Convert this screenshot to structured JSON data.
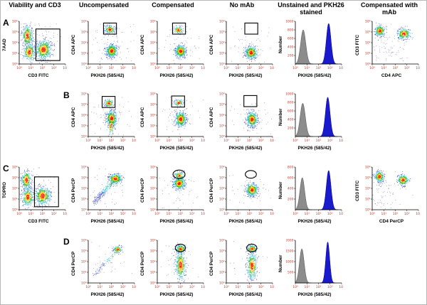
{
  "figure": {
    "column_headers": [
      "Viability and CD3",
      "Uncompensated",
      "Compensated",
      "No mAb",
      "Unstained and PKH26 stained",
      "Compensated with mAb"
    ],
    "row_labels": [
      "A",
      "B",
      "C",
      "D"
    ]
  },
  "axis": {
    "log_ticks": [
      "10⁰",
      "10¹",
      "10²",
      "10³",
      "10⁴"
    ],
    "tick_color": "#c0392b"
  },
  "colors": {
    "density_scale": [
      "#2332c8",
      "#14b4d2",
      "#28b428",
      "#ffc800",
      "#ff1400"
    ],
    "background_dots": "#2a2a6e",
    "histogram_unstained_fill": "#8c8c8c",
    "histogram_stained_fill": "#1a1acd",
    "gate": "#000000"
  },
  "chart_data": [
    {
      "id": "A1",
      "row": "A",
      "col": 1,
      "type": "density",
      "xlabel": "CD3 FITC",
      "ylabel": "7AAD",
      "scatter": [
        {
          "x": 0.32,
          "y": 0.55,
          "sx": 0.26,
          "sy": 0.28,
          "n": 110
        }
      ],
      "clusters": [
        {
          "x": 0.17,
          "y": 0.66,
          "sx": 0.055,
          "sy": 0.115,
          "n": 420
        },
        {
          "x": 0.21,
          "y": 0.28,
          "sx": 0.06,
          "sy": 0.1,
          "n": 360
        },
        {
          "x": 0.52,
          "y": 0.34,
          "sx": 0.08,
          "sy": 0.105,
          "n": 650
        }
      ],
      "gates": [
        {
          "shape": "rect",
          "x": 0.36,
          "y": 0.08,
          "w": 0.52,
          "h": 0.74
        }
      ]
    },
    {
      "id": "A2",
      "row": "A",
      "col": 2,
      "type": "density",
      "xlabel": "PKH26 (585/42)",
      "ylabel": "CD4 APC",
      "scatter": [
        {
          "x": 0.45,
          "y": 0.42,
          "sx": 0.3,
          "sy": 0.27,
          "n": 70
        }
      ],
      "clusters": [
        {
          "x": 0.5,
          "y": 0.31,
          "sx": 0.055,
          "sy": 0.07,
          "n": 560
        },
        {
          "x": 0.46,
          "y": 0.81,
          "sx": 0.05,
          "sy": 0.045,
          "n": 230
        }
      ],
      "gates": [
        {
          "shape": "rect",
          "x": 0.33,
          "y": 0.7,
          "w": 0.28,
          "h": 0.26
        }
      ]
    },
    {
      "id": "A3",
      "row": "A",
      "col": 3,
      "type": "density",
      "xlabel": "PKH26 (585/42)",
      "ylabel": "CD4 APC",
      "scatter": [
        {
          "x": 0.45,
          "y": 0.42,
          "sx": 0.28,
          "sy": 0.26,
          "n": 60
        }
      ],
      "clusters": [
        {
          "x": 0.5,
          "y": 0.3,
          "sx": 0.055,
          "sy": 0.07,
          "n": 560
        },
        {
          "x": 0.45,
          "y": 0.8,
          "sx": 0.045,
          "sy": 0.04,
          "n": 150
        }
      ],
      "gates": [
        {
          "shape": "rect",
          "x": 0.33,
          "y": 0.7,
          "w": 0.28,
          "h": 0.26
        }
      ]
    },
    {
      "id": "A4",
      "row": "A",
      "col": 4,
      "type": "density",
      "xlabel": "PKH26 (585/42)",
      "ylabel": "CD4 APC",
      "scatter": [
        {
          "x": 0.5,
          "y": 0.45,
          "sx": 0.28,
          "sy": 0.25,
          "n": 50
        }
      ],
      "clusters": [
        {
          "x": 0.53,
          "y": 0.27,
          "sx": 0.06,
          "sy": 0.07,
          "n": 560
        }
      ],
      "gates": [
        {
          "shape": "rect",
          "x": 0.4,
          "y": 0.7,
          "w": 0.28,
          "h": 0.26
        }
      ]
    },
    {
      "id": "A5",
      "row": "A",
      "col": 5,
      "type": "histogram",
      "xlabel": "PKH26 (585/42)",
      "ylabel": "Number",
      "y_ticks": [
        "200",
        "400",
        "600",
        "800",
        "1000"
      ],
      "peaks": [
        {
          "x": 0.17,
          "sigma": 0.055,
          "height": 0.8,
          "fill": "#8c8c8c",
          "stroke": "#4d4d4d"
        },
        {
          "x": 0.72,
          "sigma": 0.05,
          "height": 0.95,
          "fill": "#1a1acd",
          "stroke": "#00008b"
        }
      ]
    },
    {
      "id": "A6",
      "row": "A",
      "col": 6,
      "type": "density",
      "xlabel": "CD4 APC",
      "ylabel": "CD3 FITC",
      "scatter": [
        {
          "x": 0.3,
          "y": 0.35,
          "sx": 0.22,
          "sy": 0.22,
          "n": 90
        }
      ],
      "clusters": [
        {
          "x": 0.16,
          "y": 0.78,
          "sx": 0.05,
          "sy": 0.06,
          "n": 340
        },
        {
          "x": 0.68,
          "y": 0.71,
          "sx": 0.065,
          "sy": 0.06,
          "n": 340
        }
      ]
    },
    {
      "id": "B2",
      "row": "B",
      "col": 2,
      "type": "density",
      "xlabel": "PKH26 (585/42)",
      "ylabel": "CD4 APC",
      "scatter": [
        {
          "x": 0.45,
          "y": 0.45,
          "sx": 0.28,
          "sy": 0.27,
          "n": 60
        }
      ],
      "clusters": [
        {
          "x": 0.5,
          "y": 0.43,
          "sx": 0.055,
          "sy": 0.085,
          "n": 560
        },
        {
          "x": 0.49,
          "y": 0.25,
          "sx": 0.04,
          "sy": 0.09,
          "n": 120
        },
        {
          "x": 0.44,
          "y": 0.78,
          "sx": 0.045,
          "sy": 0.04,
          "n": 170
        }
      ],
      "gates": [
        {
          "shape": "rect",
          "x": 0.3,
          "y": 0.68,
          "w": 0.28,
          "h": 0.26
        }
      ]
    },
    {
      "id": "B3",
      "row": "B",
      "col": 3,
      "type": "density",
      "xlabel": "PKH26 (585/42)",
      "ylabel": "CD4 APC",
      "scatter": [
        {
          "x": 0.45,
          "y": 0.45,
          "sx": 0.28,
          "sy": 0.26,
          "n": 55
        }
      ],
      "clusters": [
        {
          "x": 0.5,
          "y": 0.41,
          "sx": 0.055,
          "sy": 0.08,
          "n": 560
        },
        {
          "x": 0.46,
          "y": 0.79,
          "sx": 0.045,
          "sy": 0.04,
          "n": 140
        }
      ],
      "gates": [
        {
          "shape": "rect",
          "x": 0.31,
          "y": 0.69,
          "w": 0.28,
          "h": 0.26
        }
      ]
    },
    {
      "id": "B4",
      "row": "B",
      "col": 4,
      "type": "density",
      "xlabel": "PKH26 (585/42)",
      "ylabel": "CD4 APC",
      "scatter": [
        {
          "x": 0.5,
          "y": 0.45,
          "sx": 0.26,
          "sy": 0.25,
          "n": 45
        }
      ],
      "clusters": [
        {
          "x": 0.55,
          "y": 0.4,
          "sx": 0.055,
          "sy": 0.08,
          "n": 560
        }
      ],
      "gates": [
        {
          "shape": "rect",
          "x": 0.38,
          "y": 0.7,
          "w": 0.28,
          "h": 0.26
        }
      ]
    },
    {
      "id": "B5",
      "row": "B",
      "col": 5,
      "type": "histogram",
      "xlabel": "PKH26 (585/42)",
      "ylabel": "Number",
      "y_ticks": [
        "200",
        "400",
        "600",
        "800",
        "1000"
      ],
      "peaks": [
        {
          "x": 0.16,
          "sigma": 0.055,
          "height": 0.78,
          "fill": "#8c8c8c",
          "stroke": "#4d4d4d"
        },
        {
          "x": 0.7,
          "sigma": 0.05,
          "height": 0.92,
          "fill": "#1a1acd",
          "stroke": "#00008b"
        }
      ]
    },
    {
      "id": "C1",
      "row": "C",
      "col": 1,
      "type": "density",
      "xlabel": "CD3 FITC",
      "ylabel": "TOPRO",
      "scatter": [
        {
          "x": 0.32,
          "y": 0.5,
          "sx": 0.26,
          "sy": 0.28,
          "n": 100
        }
      ],
      "clusters": [
        {
          "x": 0.15,
          "y": 0.7,
          "sx": 0.05,
          "sy": 0.1,
          "n": 380
        },
        {
          "x": 0.18,
          "y": 0.3,
          "sx": 0.06,
          "sy": 0.1,
          "n": 380
        },
        {
          "x": 0.5,
          "y": 0.33,
          "sx": 0.08,
          "sy": 0.1,
          "n": 620
        }
      ],
      "gates": [
        {
          "shape": "rect",
          "x": 0.33,
          "y": 0.07,
          "w": 0.52,
          "h": 0.7
        }
      ]
    },
    {
      "id": "C2",
      "row": "C",
      "col": 2,
      "type": "density",
      "xlabel": "PKH26 (585/42)",
      "ylabel": "CD4 PerCP",
      "streaks": [
        {
          "x0": 0.1,
          "y0": 0.15,
          "x1": 0.55,
          "y1": 0.68,
          "s": 0.03,
          "n": 240
        }
      ],
      "clusters": [
        {
          "x": 0.58,
          "y": 0.73,
          "sx": 0.065,
          "sy": 0.055,
          "n": 480
        }
      ],
      "scatter": [
        {
          "x": 0.4,
          "y": 0.45,
          "sx": 0.25,
          "sy": 0.25,
          "n": 40
        }
      ]
    },
    {
      "id": "C3",
      "row": "C",
      "col": 3,
      "type": "density",
      "xlabel": "PKH26 (585/42)",
      "ylabel": "CD4 PerCP",
      "scatter": [
        {
          "x": 0.45,
          "y": 0.45,
          "sx": 0.26,
          "sy": 0.25,
          "n": 40
        }
      ],
      "clusters": [
        {
          "x": 0.47,
          "y": 0.62,
          "sx": 0.06,
          "sy": 0.065,
          "n": 520
        },
        {
          "x": 0.47,
          "y": 0.8,
          "sx": 0.05,
          "sy": 0.04,
          "n": 140
        }
      ],
      "gates": [
        {
          "shape": "ellipse",
          "cx": 0.47,
          "cy": 0.83,
          "rx": 0.13,
          "ry": 0.1
        }
      ]
    },
    {
      "id": "C4",
      "row": "C",
      "col": 4,
      "type": "density",
      "xlabel": "PKH26 (585/42)",
      "ylabel": "CD4 PerCP",
      "scatter": [
        {
          "x": 0.5,
          "y": 0.45,
          "sx": 0.25,
          "sy": 0.24,
          "n": 40
        }
      ],
      "clusters": [
        {
          "x": 0.55,
          "y": 0.47,
          "sx": 0.06,
          "sy": 0.07,
          "n": 520
        }
      ],
      "gates": [
        {
          "shape": "ellipse",
          "cx": 0.53,
          "cy": 0.83,
          "rx": 0.12,
          "ry": 0.09
        }
      ]
    },
    {
      "id": "C5",
      "row": "C",
      "col": 5,
      "type": "histogram",
      "xlabel": "PKH26 (585/42)",
      "ylabel": "Number",
      "y_ticks": [
        "200",
        "400",
        "600",
        "800"
      ],
      "peaks": [
        {
          "x": 0.15,
          "sigma": 0.05,
          "height": 0.75,
          "fill": "#8c8c8c",
          "stroke": "#4d4d4d"
        },
        {
          "x": 0.72,
          "sigma": 0.05,
          "height": 0.92,
          "fill": "#1a1acd",
          "stroke": "#00008b"
        }
      ]
    },
    {
      "id": "C6",
      "row": "C",
      "col": 6,
      "type": "density",
      "xlabel": "CD4 PerCP",
      "ylabel": "CD3 FITC",
      "scatter": [
        {
          "x": 0.3,
          "y": 0.35,
          "sx": 0.22,
          "sy": 0.22,
          "n": 80
        }
      ],
      "clusters": [
        {
          "x": 0.15,
          "y": 0.78,
          "sx": 0.05,
          "sy": 0.06,
          "n": 320
        },
        {
          "x": 0.66,
          "y": 0.7,
          "sx": 0.06,
          "sy": 0.06,
          "n": 320
        }
      ]
    },
    {
      "id": "D2",
      "row": "D",
      "col": 2,
      "type": "density",
      "xlabel": "PKH26 (585/42)",
      "ylabel": "CD4 PerCP",
      "streaks": [
        {
          "x0": 0.12,
          "y0": 0.18,
          "x1": 0.58,
          "y1": 0.72,
          "s": 0.025,
          "n": 90
        }
      ],
      "clusters": [
        {
          "x": 0.63,
          "y": 0.79,
          "sx": 0.045,
          "sy": 0.04,
          "n": 170
        }
      ],
      "scatter": [
        {
          "x": 0.4,
          "y": 0.4,
          "sx": 0.25,
          "sy": 0.25,
          "n": 30
        }
      ]
    },
    {
      "id": "D3",
      "row": "D",
      "col": 3,
      "type": "density",
      "xlabel": "PKH26 (585/42)",
      "ylabel": "CD4 PerCP",
      "scatter": [
        {
          "x": 0.45,
          "y": 0.5,
          "sx": 0.2,
          "sy": 0.25,
          "n": 30
        }
      ],
      "clusters": [
        {
          "x": 0.5,
          "y": 0.42,
          "sx": 0.05,
          "sy": 0.16,
          "n": 520
        },
        {
          "x": 0.5,
          "y": 0.8,
          "sx": 0.05,
          "sy": 0.045,
          "n": 260
        }
      ],
      "gates": [
        {
          "shape": "ellipse",
          "cx": 0.5,
          "cy": 0.82,
          "rx": 0.11,
          "ry": 0.09
        }
      ]
    },
    {
      "id": "D4",
      "row": "D",
      "col": 4,
      "type": "density",
      "xlabel": "PKH26 (585/42)",
      "ylabel": "CD4 PerCP",
      "scatter": [
        {
          "x": 0.5,
          "y": 0.5,
          "sx": 0.2,
          "sy": 0.24,
          "n": 30
        }
      ],
      "clusters": [
        {
          "x": 0.55,
          "y": 0.4,
          "sx": 0.05,
          "sy": 0.15,
          "n": 480
        },
        {
          "x": 0.55,
          "y": 0.8,
          "sx": 0.05,
          "sy": 0.04,
          "n": 230
        }
      ],
      "gates": [
        {
          "shape": "ellipse",
          "cx": 0.55,
          "cy": 0.82,
          "rx": 0.11,
          "ry": 0.09
        }
      ]
    },
    {
      "id": "D5",
      "row": "D",
      "col": 5,
      "type": "histogram",
      "xlabel": "PKH26 (585/42)",
      "ylabel": "Number",
      "y_ticks": [
        "500",
        "1000",
        "1500",
        "2000"
      ],
      "peaks": [
        {
          "x": 0.14,
          "sigma": 0.05,
          "height": 0.8,
          "fill": "#8c8c8c",
          "stroke": "#4d4d4d"
        },
        {
          "x": 0.7,
          "sigma": 0.042,
          "height": 0.96,
          "fill": "#1a1acd",
          "stroke": "#00008b"
        }
      ]
    }
  ]
}
